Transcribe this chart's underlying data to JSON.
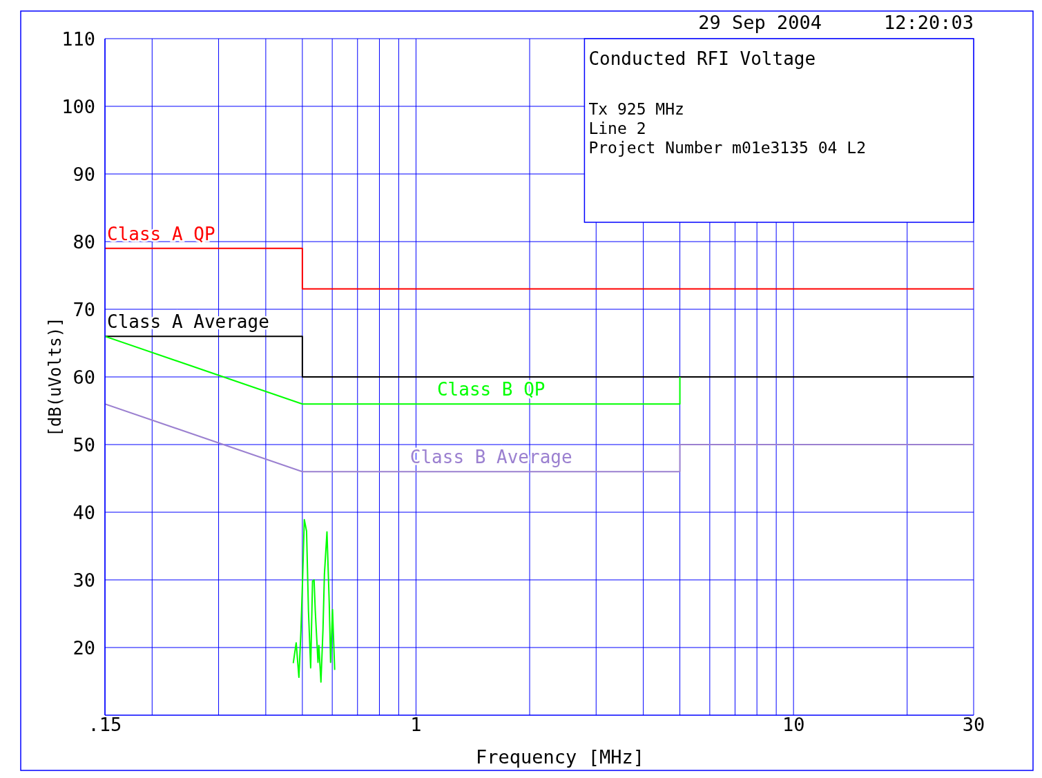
{
  "chart_data": {
    "type": "line",
    "title": "Conducted RFI Voltage",
    "xlabel": "Frequency [MHz]",
    "ylabel": "[dB(uVolts)]",
    "annotations": [
      "29 Sep 2004",
      "12:20:03",
      "Tx 925 MHz",
      "Line 2",
      "Project Number m01e3135 04 L2"
    ],
    "log": "x",
    "grid": true,
    "xlim": [
      0.15,
      30
    ],
    "xticks": [
      {
        "value": 0.15,
        "label": ".15"
      },
      {
        "value": 0.2,
        "label": null
      },
      {
        "value": 0.3,
        "label": null
      },
      {
        "value": 0.4,
        "label": null
      },
      {
        "value": 0.5,
        "label": null
      },
      {
        "value": 0.6,
        "label": null
      },
      {
        "value": 0.7,
        "label": null
      },
      {
        "value": 0.8,
        "label": null
      },
      {
        "value": 0.9,
        "label": null
      },
      1,
      {
        "value": 2,
        "label": null
      },
      {
        "value": 3,
        "label": null
      },
      {
        "value": 4,
        "label": null
      },
      {
        "value": 5,
        "label": null
      },
      {
        "value": 6,
        "label": null
      },
      {
        "value": 7,
        "label": null
      },
      {
        "value": 8,
        "label": null
      },
      {
        "value": 9,
        "label": null
      },
      10,
      {
        "value": 20,
        "label": null
      },
      30
    ],
    "ylim": [
      10,
      110
    ],
    "yticks": [
      20,
      30,
      40,
      50,
      60,
      70,
      80,
      90,
      100,
      110
    ],
    "series": [
      {
        "name": "Class A QP",
        "color": "#ff0000",
        "x": [
          0.15,
          0.5,
          0.5,
          30
        ],
        "values": [
          79,
          79,
          73,
          73
        ]
      },
      {
        "name": "Class A Average",
        "color": "#000000",
        "x": [
          0.15,
          0.5,
          0.5,
          30
        ],
        "values": [
          66,
          66,
          60,
          60
        ]
      },
      {
        "name": "Class B QP",
        "color": "#00ff00",
        "x": [
          0.15,
          0.5,
          5,
          5
        ],
        "values": [
          66,
          56,
          56,
          60
        ]
      },
      {
        "name": "Class B Average",
        "color": "#9b80d0",
        "x": [
          0.15,
          0.5,
          5,
          5,
          30
        ],
        "values": [
          56,
          46,
          46,
          50,
          50
        ]
      },
      {
        "color": "#00ff00",
        "x": [
          0.473,
          0.4815,
          0.4896,
          0.4958,
          0.5,
          0.506,
          0.513,
          0.519,
          0.526,
          0.532,
          0.537,
          0.541,
          0.55,
          0.553,
          0.56,
          0.567,
          0.572,
          0.581,
          0.589,
          0.594,
          0.601,
          0.609
        ],
        "values": [
          17.7,
          20.7,
          15.6,
          22.6,
          29,
          38.9,
          37.2,
          25.4,
          17,
          29.8,
          30,
          25.4,
          17.8,
          20.3,
          14.9,
          22.6,
          30.8,
          37.1,
          26.7,
          17.8,
          25.6,
          16.7
        ]
      }
    ]
  }
}
